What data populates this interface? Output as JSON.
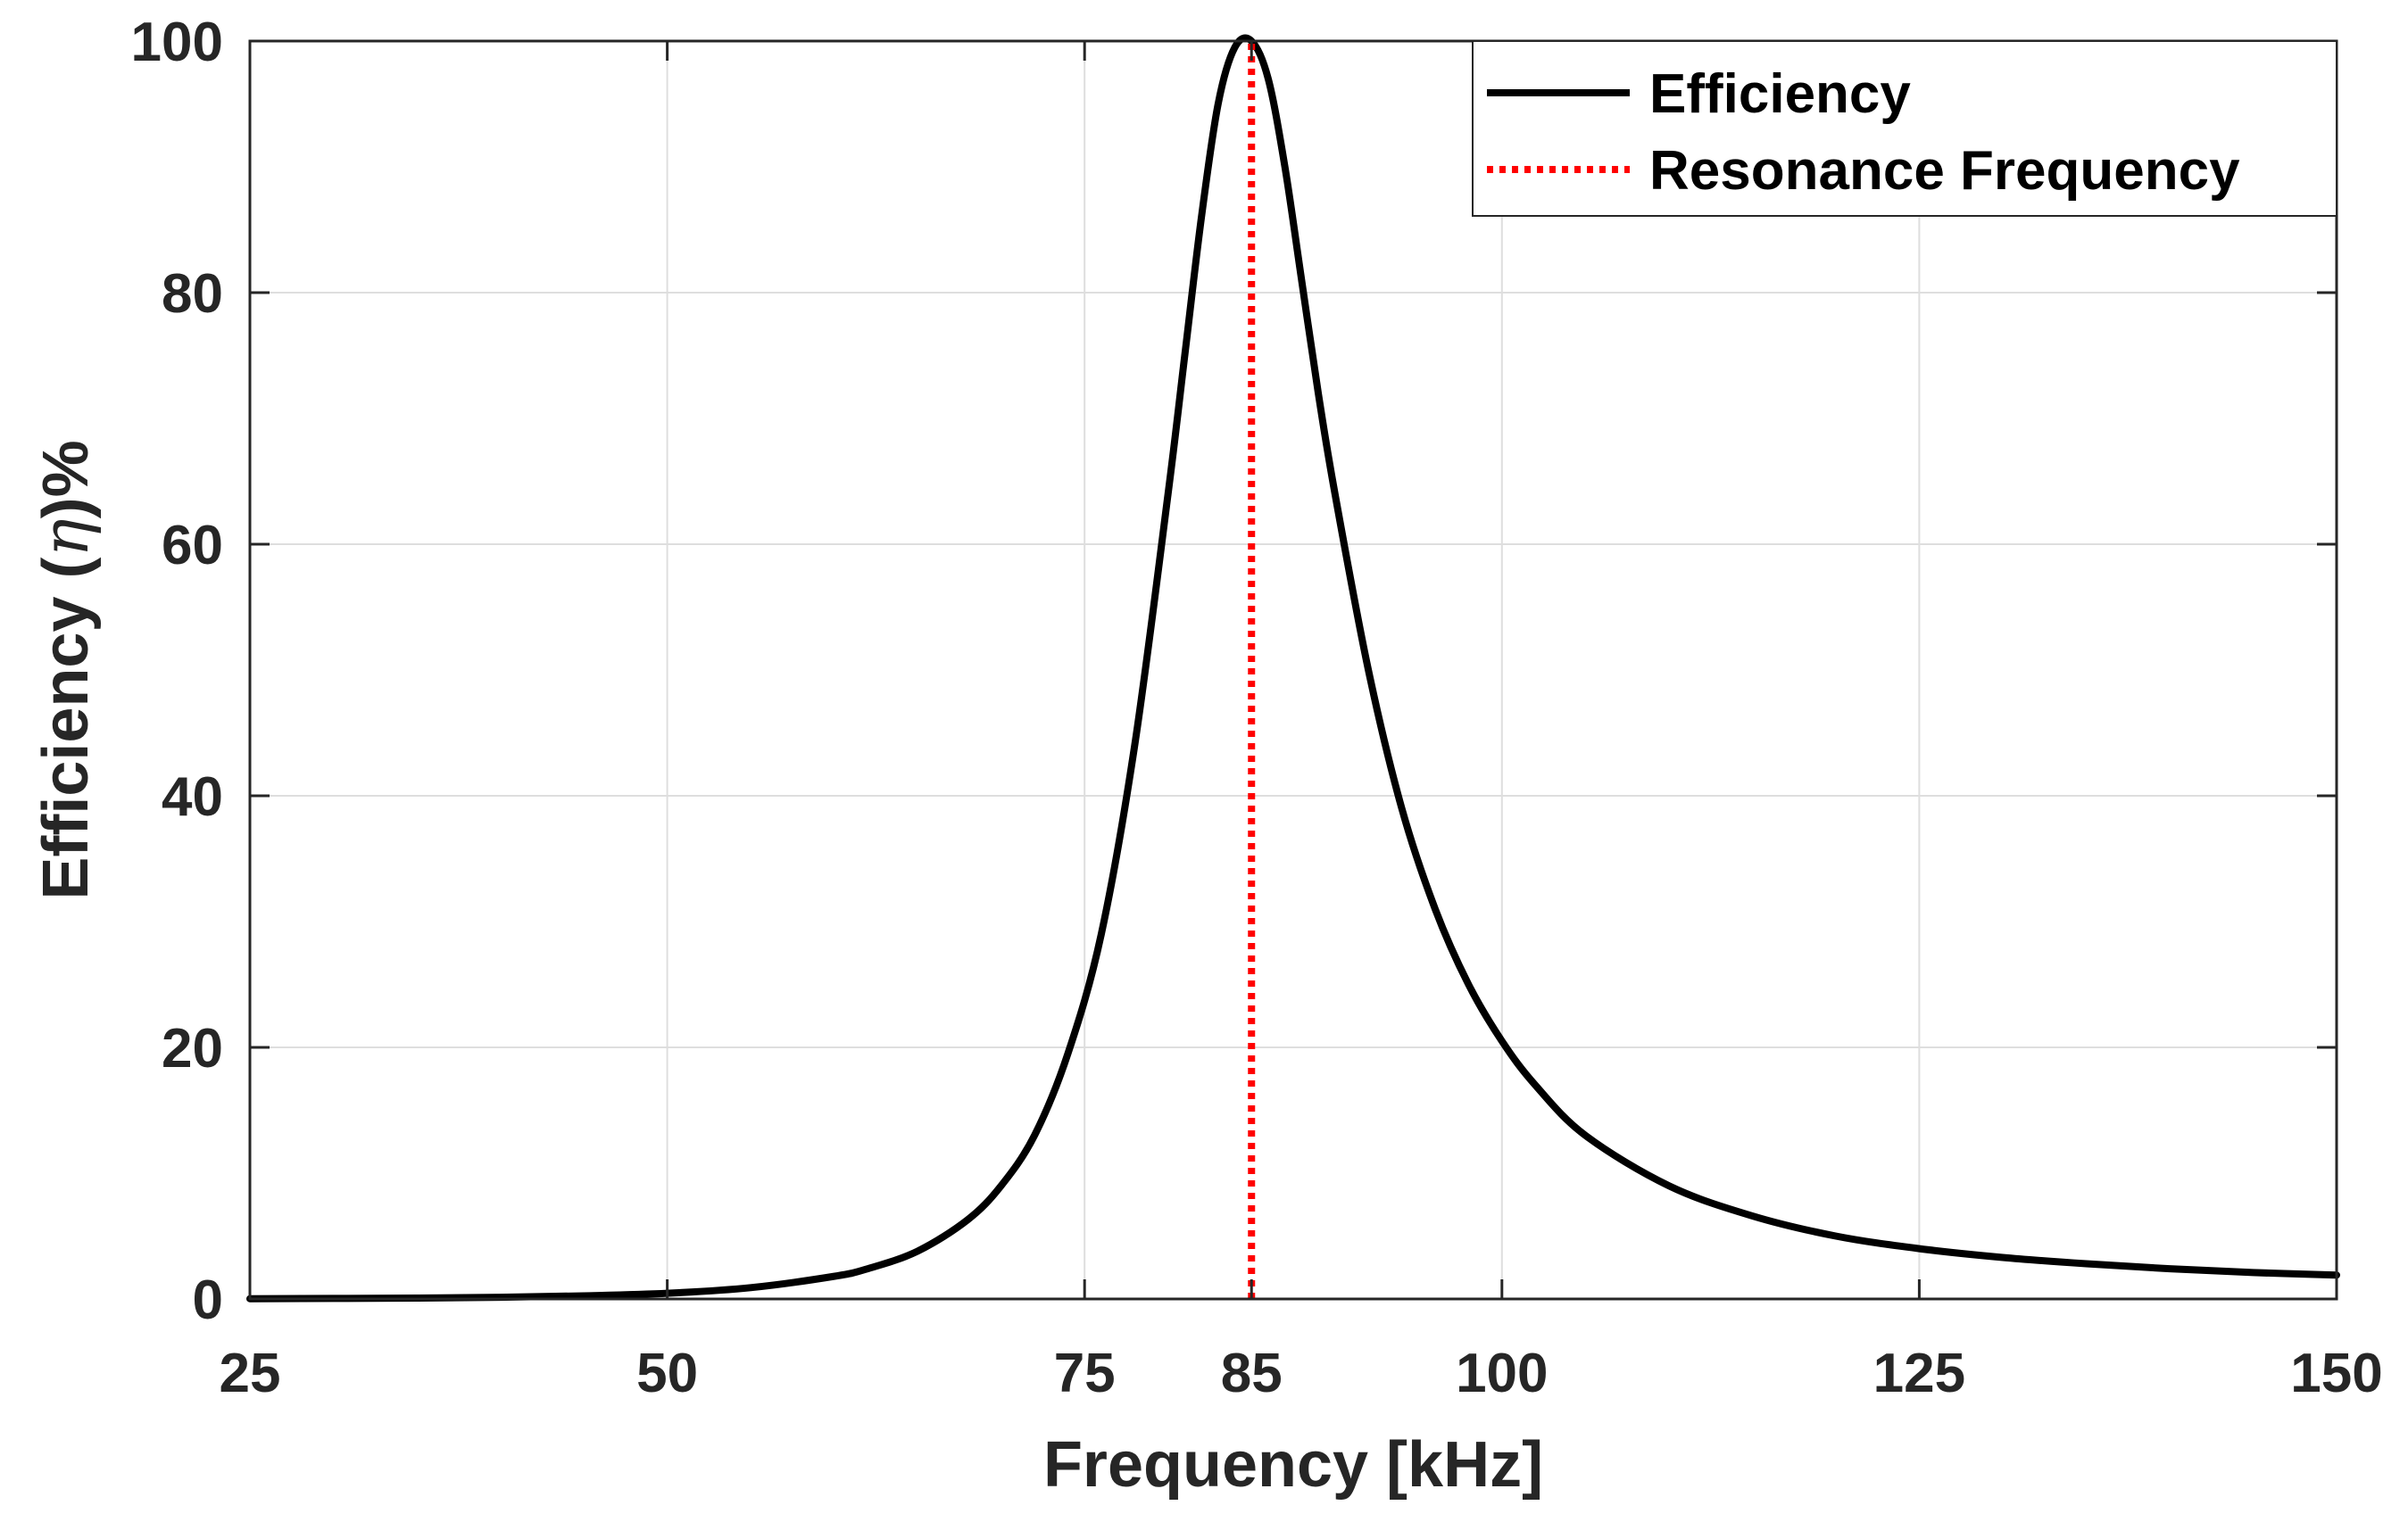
{
  "chart_data": {
    "type": "line",
    "title": "",
    "xlabel": "Frequency [kHz]",
    "ylabel_prefix": "Efficiency (",
    "ylabel_symbol": "η",
    "ylabel_suffix": ")%",
    "xlim": [
      25,
      150
    ],
    "ylim": [
      0,
      100
    ],
    "xticks": [
      25,
      50,
      75,
      85,
      100,
      125,
      150
    ],
    "yticks": [
      0,
      20,
      40,
      60,
      80,
      100
    ],
    "xgrid": [
      50,
      75,
      100,
      125
    ],
    "grid": true,
    "legend_position": "top-right",
    "series": [
      {
        "name": "Efficiency",
        "style": "solid",
        "color": "#000000",
        "x": [
          25,
          30,
          35,
          40,
          45,
          50,
          55,
          60,
          62,
          65,
          68,
          70,
          72,
          74,
          76,
          78,
          80,
          81,
          82,
          83,
          84,
          85,
          86,
          87,
          88,
          89,
          90,
          92,
          94,
          96,
          98,
          100,
          102,
          105,
          110,
          115,
          120,
          125,
          130,
          135,
          140,
          145,
          150
        ],
        "y": [
          0.02,
          0.04,
          0.07,
          0.13,
          0.25,
          0.45,
          0.9,
          1.8,
          2.4,
          3.8,
          6.3,
          9.0,
          13.0,
          19.5,
          29.0,
          44.0,
          64.0,
          75.0,
          86.0,
          95.0,
          99.5,
          100,
          97.0,
          90.0,
          81.0,
          72.0,
          64.0,
          50.0,
          39.0,
          31.0,
          25.0,
          20.5,
          17.0,
          13.0,
          9.0,
          6.6,
          5.0,
          4.0,
          3.3,
          2.8,
          2.4,
          2.1,
          1.9
        ]
      },
      {
        "name": "Resonance Frequency",
        "style": "dotted",
        "color": "#ff0000",
        "x": [
          85,
          85
        ],
        "y": [
          0,
          100
        ]
      }
    ]
  }
}
